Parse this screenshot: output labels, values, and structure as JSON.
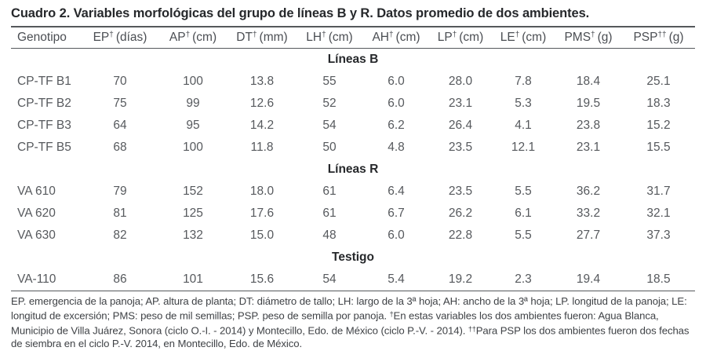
{
  "title": "Cuadro 2. Variables morfológicas del grupo de líneas B y R. Datos promedio de dos ambientes.",
  "table": {
    "columns": [
      {
        "name": "Genotipo",
        "sup": "",
        "unit": ""
      },
      {
        "name": "EP",
        "sup": "†",
        "unit": "(días)"
      },
      {
        "name": "AP",
        "sup": "†",
        "unit": "(cm)"
      },
      {
        "name": "DT",
        "sup": "†",
        "unit": "(mm)"
      },
      {
        "name": "LH",
        "sup": "†",
        "unit": "(cm)"
      },
      {
        "name": "AH",
        "sup": "†",
        "unit": "(cm)"
      },
      {
        "name": "LP",
        "sup": "†",
        "unit": "(cm)"
      },
      {
        "name": "LE",
        "sup": "†",
        "unit": "(cm)"
      },
      {
        "name": "PMS",
        "sup": "†",
        "unit": "(g)"
      },
      {
        "name": "PSP",
        "sup": "††",
        "unit": "(g)"
      }
    ],
    "sections": [
      {
        "label": "Líneas B",
        "rows": [
          {
            "cells": [
              "CP-TF B1",
              "70",
              "100",
              "13.8",
              "55",
              "6.0",
              "28.0",
              "7.8",
              "18.4",
              "25.1"
            ]
          },
          {
            "cells": [
              "CP-TF B2",
              "75",
              "99",
              "12.6",
              "52",
              "6.0",
              "23.1",
              "5.3",
              "19.5",
              "18.3"
            ]
          },
          {
            "cells": [
              "CP-TF B3",
              "64",
              "95",
              "14.2",
              "54",
              "6.2",
              "26.4",
              "4.1",
              "23.8",
              "15.2"
            ]
          },
          {
            "cells": [
              "CP-TF B5",
              "68",
              "100",
              "11.8",
              "50",
              "4.8",
              "23.5",
              "12.1",
              "23.1",
              "15.5"
            ]
          }
        ]
      },
      {
        "label": "Líneas R",
        "rows": [
          {
            "cells": [
              "VA 610",
              "79",
              "152",
              "18.0",
              "61",
              "6.4",
              "23.5",
              "5.5",
              "36.2",
              "31.7"
            ]
          },
          {
            "cells": [
              "VA 620",
              "81",
              "125",
              "17.6",
              "61",
              "6.7",
              "26.2",
              "6.1",
              "33.2",
              "32.1"
            ]
          },
          {
            "cells": [
              "VA 630",
              "82",
              "132",
              "15.0",
              "48",
              "6.0",
              "22.8",
              "5.5",
              "27.7",
              "37.3"
            ]
          }
        ]
      },
      {
        "label": "Testigo",
        "rows": [
          {
            "cells": [
              "VA-110",
              "86",
              "101",
              "15.6",
              "54",
              "5.4",
              "19.2",
              "2.3",
              "19.4",
              "18.5"
            ]
          }
        ]
      }
    ]
  },
  "footnote": {
    "segments": [
      {
        "text": "EP. emergencia de la panoja; AP. altura de planta; DT: diámetro de tallo; LH: largo de la 3ª hoja; AH: ancho de la 3ª hoja; LP. longitud de la panoja; LE: longitud de excersión; PMS: peso de mil semillas; PSP. peso de semilla por panoja. ",
        "sup": false
      },
      {
        "text": "†",
        "sup": true
      },
      {
        "text": "En estas variables los dos ambientes fueron: Agua Blanca, Municipio de Villa Juárez, Sonora (ciclo O.-I. - 2014) y Montecillo, Edo. de México (ciclo P.-V. - 2014). ",
        "sup": false
      },
      {
        "text": "††",
        "sup": true
      },
      {
        "text": "Para PSP los dos ambientes fueron dos fechas de siembra en el ciclo P.-V. 2014, en Montecillo, Edo. de México.",
        "sup": false
      }
    ]
  },
  "colors": {
    "rule": "#55585c",
    "title_text": "#26282b",
    "header_text": "#4b4e53",
    "data_text": "#56595d",
    "footnote_text": "#3f4246",
    "background": "#ffffff"
  }
}
